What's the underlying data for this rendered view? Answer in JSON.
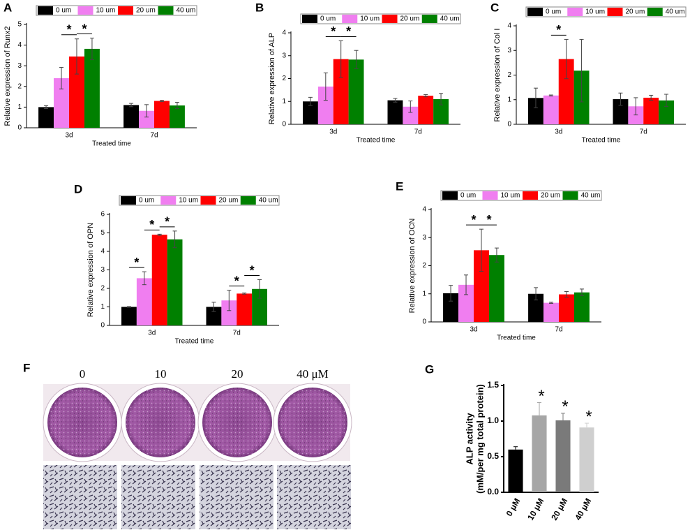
{
  "chart_data": [
    {
      "type": "grouped_bar",
      "panel_label": "A",
      "y_label": "Relative expression of Runx2",
      "x_label": "Treated time",
      "categories": [
        "3d",
        "7d"
      ],
      "series": [
        {
          "name": "0 um",
          "color": "#000000",
          "values": [
            1.0,
            1.1
          ],
          "errors": [
            0.07,
            0.08
          ]
        },
        {
          "name": "10 um",
          "color": "#f07ef0",
          "values": [
            2.4,
            0.82
          ],
          "errors": [
            0.52,
            0.3
          ]
        },
        {
          "name": "20 um",
          "color": "#ff0000",
          "values": [
            3.45,
            1.3
          ],
          "errors": [
            0.85,
            0.03
          ]
        },
        {
          "name": "40 um",
          "color": "#008000",
          "values": [
            3.82,
            1.08
          ],
          "errors": [
            0.52,
            0.15
          ]
        }
      ],
      "ylim": [
        0,
        5
      ],
      "yticks": [
        0,
        1,
        2,
        3,
        4,
        5
      ],
      "significance": [
        {
          "label": "*",
          "category": "3d",
          "from": "10 um",
          "to": "20 um"
        },
        {
          "label": "*",
          "category": "3d",
          "from": "20 um",
          "to": "40 um"
        }
      ]
    },
    {
      "type": "grouped_bar",
      "panel_label": "B",
      "y_label": "Relative expression of ALP",
      "x_label": "Treated time",
      "categories": [
        "3d",
        "7d"
      ],
      "series": [
        {
          "name": "0 um",
          "color": "#000000",
          "values": [
            1.0,
            1.05
          ],
          "errors": [
            0.18,
            0.08
          ]
        },
        {
          "name": "10 um",
          "color": "#f07ef0",
          "values": [
            1.65,
            0.77
          ],
          "errors": [
            0.6,
            0.25
          ]
        },
        {
          "name": "20 um",
          "color": "#ff0000",
          "values": [
            2.85,
            1.25
          ],
          "errors": [
            0.8,
            0.05
          ]
        },
        {
          "name": "40 um",
          "color": "#008000",
          "values": [
            2.83,
            1.1
          ],
          "errors": [
            0.4,
            0.25
          ]
        }
      ],
      "ylim": [
        0,
        4
      ],
      "yticks": [
        0,
        1,
        2,
        3,
        4
      ],
      "significance": [
        {
          "label": "*",
          "category": "3d",
          "from": "10 um",
          "to": "20 um"
        },
        {
          "label": "*",
          "category": "3d",
          "from": "20 um",
          "to": "40 um"
        }
      ]
    },
    {
      "type": "grouped_bar",
      "panel_label": "C",
      "y_label": "Relative expression of Col I",
      "x_label": "Treated time",
      "categories": [
        "3d",
        "7d"
      ],
      "series": [
        {
          "name": "0 um",
          "color": "#000000",
          "values": [
            1.07,
            1.02
          ],
          "errors": [
            0.4,
            0.25
          ]
        },
        {
          "name": "10 um",
          "color": "#f07ef0",
          "values": [
            1.17,
            0.73
          ],
          "errors": [
            0.02,
            0.35
          ]
        },
        {
          "name": "20 um",
          "color": "#ff0000",
          "values": [
            2.65,
            1.08
          ],
          "errors": [
            0.8,
            0.1
          ]
        },
        {
          "name": "40 um",
          "color": "#008000",
          "values": [
            2.18,
            0.97
          ],
          "errors": [
            1.27,
            0.25
          ]
        }
      ],
      "ylim": [
        0,
        4
      ],
      "yticks": [
        0,
        1,
        2,
        3,
        4
      ],
      "significance": [
        {
          "label": "*",
          "category": "3d",
          "from": "10 um",
          "to": "20 um"
        }
      ]
    },
    {
      "type": "grouped_bar",
      "panel_label": "D",
      "y_label": "Relative expression of OPN",
      "x_label": "Treated time",
      "categories": [
        "3d",
        "7d"
      ],
      "series": [
        {
          "name": "0 um",
          "color": "#000000",
          "values": [
            1.0,
            1.0
          ],
          "errors": [
            0.02,
            0.25
          ]
        },
        {
          "name": "10 um",
          "color": "#f07ef0",
          "values": [
            2.55,
            1.35
          ],
          "errors": [
            0.35,
            0.55
          ]
        },
        {
          "name": "20 um",
          "color": "#ff0000",
          "values": [
            4.9,
            1.72
          ],
          "errors": [
            0.03,
            0.03
          ]
        },
        {
          "name": "40 um",
          "color": "#008000",
          "values": [
            4.65,
            1.97
          ],
          "errors": [
            0.45,
            0.5
          ]
        }
      ],
      "ylim": [
        0,
        6
      ],
      "yticks": [
        0,
        1,
        2,
        3,
        4,
        5,
        6
      ],
      "significance": [
        {
          "label": "*",
          "category": "3d",
          "from": "0 um",
          "to": "10 um"
        },
        {
          "label": "*",
          "category": "3d",
          "from": "10 um",
          "to": "20 um"
        },
        {
          "label": "*",
          "category": "3d",
          "from": "20 um",
          "to": "40 um"
        },
        {
          "label": "*",
          "category": "7d",
          "from": "10 um",
          "to": "20 um"
        },
        {
          "label": "*",
          "category": "7d",
          "from": "20 um",
          "to": "40 um"
        }
      ]
    },
    {
      "type": "grouped_bar",
      "panel_label": "E",
      "y_label": "Relative expression of OCN",
      "x_label": "Treated time",
      "categories": [
        "3d",
        "7d"
      ],
      "series": [
        {
          "name": "0 um",
          "color": "#000000",
          "values": [
            1.02,
            1.0
          ],
          "errors": [
            0.28,
            0.22
          ]
        },
        {
          "name": "10 um",
          "color": "#f07ef0",
          "values": [
            1.32,
            0.68
          ],
          "errors": [
            0.35,
            0.02
          ]
        },
        {
          "name": "20 um",
          "color": "#ff0000",
          "values": [
            2.55,
            0.98
          ],
          "errors": [
            0.75,
            0.1
          ]
        },
        {
          "name": "40 um",
          "color": "#008000",
          "values": [
            2.38,
            1.05
          ],
          "errors": [
            0.25,
            0.12
          ]
        }
      ],
      "ylim": [
        0,
        4
      ],
      "yticks": [
        0,
        1,
        2,
        3,
        4
      ],
      "significance": [
        {
          "label": "*",
          "category": "3d",
          "from": "10 um",
          "to": "20 um"
        },
        {
          "label": "*",
          "category": "3d",
          "from": "20 um",
          "to": "40 um"
        }
      ]
    },
    {
      "type": "bar",
      "panel_label": "G",
      "y_label": [
        "ALP activity",
        "(mM/per mg total  protein)"
      ],
      "categories": [
        "0 μM",
        "10 μM",
        "20 μM",
        "40 μM"
      ],
      "values": [
        0.6,
        1.08,
        1.01,
        0.91
      ],
      "errors": [
        0.04,
        0.18,
        0.1,
        0.06
      ],
      "colors": [
        "#000000",
        "#a6a6a6",
        "#7a7a7a",
        "#cfcfcf"
      ],
      "ylim": [
        0,
        1.5
      ],
      "yticks": [
        {
          "value": 0,
          "label": "0.0"
        },
        {
          "value": 0.5,
          "label": "0.5"
        },
        {
          "value": 1.0,
          "label": "1.0"
        },
        {
          "value": 1.5,
          "label": "1.5"
        }
      ],
      "significance": [
        {
          "label": "*",
          "category": "10 μM"
        },
        {
          "label": "*",
          "category": "20 μM"
        },
        {
          "label": "*",
          "category": "40 μM"
        }
      ]
    }
  ],
  "image_panel": {
    "panel_label": "F",
    "labels": [
      "0",
      "10",
      "20",
      "40 μM"
    ]
  }
}
